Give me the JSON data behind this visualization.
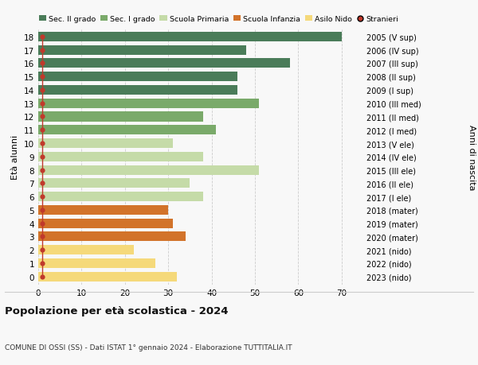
{
  "ages": [
    18,
    17,
    16,
    15,
    14,
    13,
    12,
    11,
    10,
    9,
    8,
    7,
    6,
    5,
    4,
    3,
    2,
    1,
    0
  ],
  "right_labels": [
    "2005 (V sup)",
    "2006 (IV sup)",
    "2007 (III sup)",
    "2008 (II sup)",
    "2009 (I sup)",
    "2010 (III med)",
    "2011 (II med)",
    "2012 (I med)",
    "2013 (V ele)",
    "2014 (IV ele)",
    "2015 (III ele)",
    "2016 (II ele)",
    "2017 (I ele)",
    "2018 (mater)",
    "2019 (mater)",
    "2020 (mater)",
    "2021 (nido)",
    "2022 (nido)",
    "2023 (nido)"
  ],
  "bar_values": [
    70,
    48,
    58,
    46,
    46,
    51,
    38,
    41,
    31,
    38,
    51,
    35,
    38,
    30,
    31,
    34,
    22,
    27,
    32
  ],
  "bar_colors": [
    "#4a7c59",
    "#4a7c59",
    "#4a7c59",
    "#4a7c59",
    "#4a7c59",
    "#7aaa6a",
    "#7aaa6a",
    "#7aaa6a",
    "#c5dba8",
    "#c5dba8",
    "#c5dba8",
    "#c5dba8",
    "#c5dba8",
    "#d2732a",
    "#d2732a",
    "#d2732a",
    "#f5d97a",
    "#f5d97a",
    "#f5d97a"
  ],
  "stranieri_color": "#c0392b",
  "legend_labels": [
    "Sec. II grado",
    "Sec. I grado",
    "Scuola Primaria",
    "Scuola Infanzia",
    "Asilo Nido",
    "Stranieri"
  ],
  "legend_colors": [
    "#4a7c59",
    "#7aaa6a",
    "#c5dba8",
    "#d2732a",
    "#f5d97a",
    "#c0392b"
  ],
  "ylabel_left": "Età alunni",
  "ylabel_right": "Anni di nascita",
  "title": "Popolazione per età scolastica - 2024",
  "subtitle": "COMUNE DI OSSI (SS) - Dati ISTAT 1° gennaio 2024 - Elaborazione TUTTITALIA.IT",
  "xlim": [
    0,
    75
  ],
  "xticks": [
    0,
    10,
    20,
    30,
    40,
    50,
    60,
    70
  ],
  "bg_color": "#f8f8f8",
  "grid_color": "#cccccc"
}
